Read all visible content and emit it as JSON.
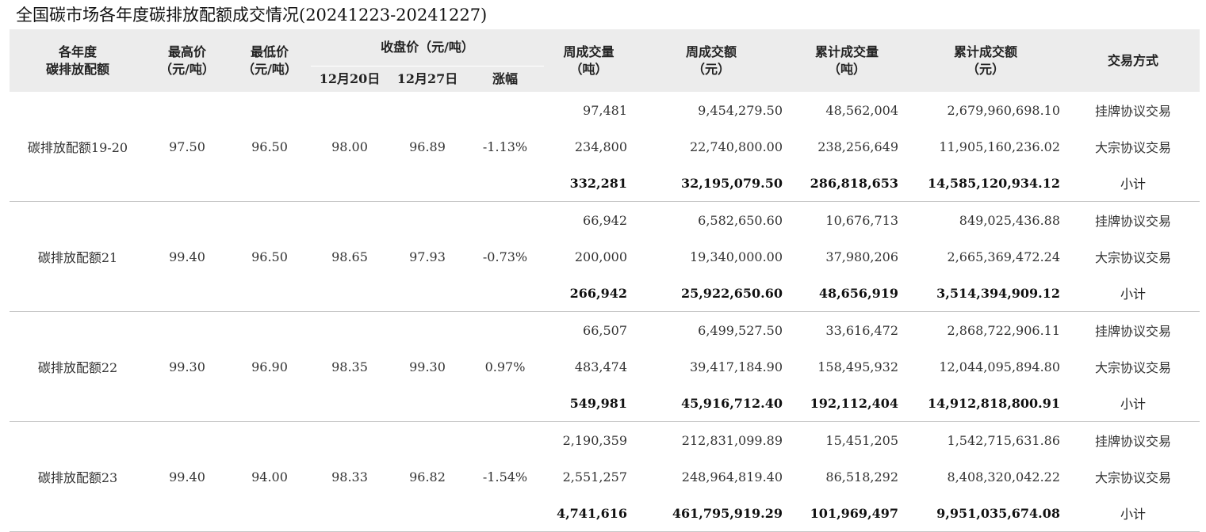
{
  "title": "全国碳市场各年度碳排放配额成交情况(20241223-20241227)",
  "header": {
    "product_line1": "各年度",
    "product_line2": "碳排放配额",
    "high_line1": "最高价",
    "high_line2": "（元/吨）",
    "low_line1": "最低价",
    "low_line2": "（元/吨）",
    "close_group": "收盘价（元/吨）",
    "close_prev": "12月20日",
    "close_curr": "12月27日",
    "change": "涨幅",
    "week_vol_line1": "周成交量",
    "week_vol_line2": "（吨）",
    "week_amt_line1": "周成交额",
    "week_amt_line2": "（元）",
    "cum_vol_line1": "累计成交量",
    "cum_vol_line2": "（吨）",
    "cum_amt_line1": "累计成交额",
    "cum_amt_line2": "（元）",
    "method": "交易方式"
  },
  "groups": [
    {
      "name": "碳排放配额19-20",
      "high": "97.50",
      "low": "96.50",
      "close_prev": "98.00",
      "close_curr": "96.89",
      "change": "-1.13%",
      "rows": [
        {
          "week_vol": "97,481",
          "week_amt": "9,454,279.50",
          "cum_vol": "48,562,004",
          "cum_amt": "2,679,960,698.10",
          "method": "挂牌协议交易"
        },
        {
          "week_vol": "234,800",
          "week_amt": "22,740,800.00",
          "cum_vol": "238,256,649",
          "cum_amt": "11,905,160,236.02",
          "method": "大宗协议交易"
        },
        {
          "week_vol": "332,281",
          "week_amt": "32,195,079.50",
          "cum_vol": "286,818,653",
          "cum_amt": "14,585,120,934.12",
          "method": "小计"
        }
      ]
    },
    {
      "name": "碳排放配额21",
      "high": "99.40",
      "low": "96.50",
      "close_prev": "98.65",
      "close_curr": "97.93",
      "change": "-0.73%",
      "rows": [
        {
          "week_vol": "66,942",
          "week_amt": "6,582,650.60",
          "cum_vol": "10,676,713",
          "cum_amt": "849,025,436.88",
          "method": "挂牌协议交易"
        },
        {
          "week_vol": "200,000",
          "week_amt": "19,340,000.00",
          "cum_vol": "37,980,206",
          "cum_amt": "2,665,369,472.24",
          "method": "大宗协议交易"
        },
        {
          "week_vol": "266,942",
          "week_amt": "25,922,650.60",
          "cum_vol": "48,656,919",
          "cum_amt": "3,514,394,909.12",
          "method": "小计"
        }
      ]
    },
    {
      "name": "碳排放配额22",
      "high": "99.30",
      "low": "96.90",
      "close_prev": "98.35",
      "close_curr": "99.30",
      "change": "0.97%",
      "rows": [
        {
          "week_vol": "66,507",
          "week_amt": "6,499,527.50",
          "cum_vol": "33,616,472",
          "cum_amt": "2,868,722,906.11",
          "method": "挂牌协议交易"
        },
        {
          "week_vol": "483,474",
          "week_amt": "39,417,184.90",
          "cum_vol": "158,495,932",
          "cum_amt": "12,044,095,894.80",
          "method": "大宗协议交易"
        },
        {
          "week_vol": "549,981",
          "week_amt": "45,916,712.40",
          "cum_vol": "192,112,404",
          "cum_amt": "14,912,818,800.91",
          "method": "小计"
        }
      ]
    },
    {
      "name": "碳排放配额23",
      "high": "99.40",
      "low": "94.00",
      "close_prev": "98.33",
      "close_curr": "96.82",
      "change": "-1.54%",
      "rows": [
        {
          "week_vol": "2,190,359",
          "week_amt": "212,831,099.89",
          "cum_vol": "15,451,205",
          "cum_amt": "1,542,715,631.86",
          "method": "挂牌协议交易"
        },
        {
          "week_vol": "2,551,257",
          "week_amt": "248,964,819.40",
          "cum_vol": "86,518,292",
          "cum_amt": "8,408,320,042.22",
          "method": "大宗协议交易"
        },
        {
          "week_vol": "4,741,616",
          "week_amt": "461,795,919.29",
          "cum_vol": "101,969,497",
          "cum_amt": "9,951,035,674.08",
          "method": "小计"
        }
      ]
    }
  ]
}
